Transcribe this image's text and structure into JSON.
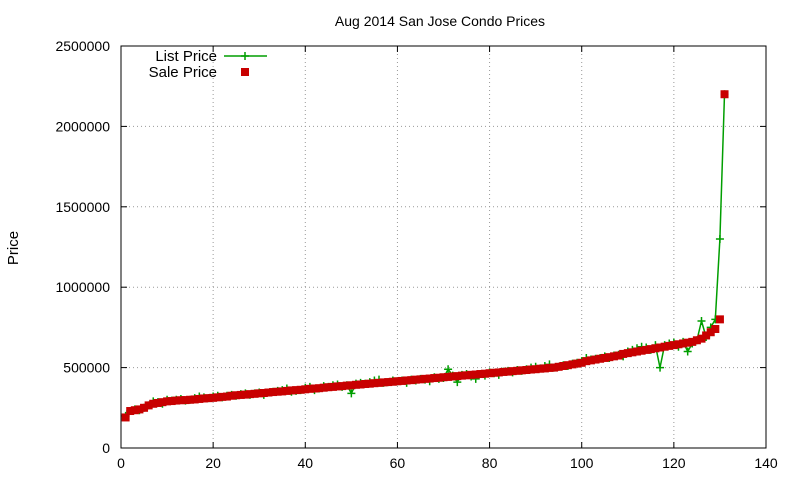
{
  "chart_data": {
    "type": "line",
    "title": "Aug 2014 San Jose Condo Prices",
    "xlabel": "",
    "ylabel": "Price",
    "xlim": [
      0,
      140
    ],
    "ylim": [
      0,
      2500000
    ],
    "xticks": [
      0,
      20,
      40,
      60,
      80,
      100,
      120,
      140
    ],
    "yticks": [
      0,
      500000,
      1000000,
      1500000,
      2000000,
      2500000
    ],
    "grid": true,
    "legend_position": "top-left",
    "series": [
      {
        "name": "List Price",
        "color": "#009e00",
        "marker": "plus",
        "x": [
          1,
          2,
          3,
          4,
          5,
          6,
          7,
          8,
          9,
          10,
          11,
          12,
          13,
          14,
          15,
          16,
          17,
          18,
          19,
          20,
          21,
          22,
          23,
          24,
          25,
          26,
          27,
          28,
          29,
          30,
          31,
          32,
          33,
          34,
          35,
          36,
          37,
          38,
          39,
          40,
          41,
          42,
          43,
          44,
          45,
          46,
          47,
          48,
          49,
          50,
          51,
          52,
          53,
          54,
          55,
          56,
          57,
          58,
          59,
          60,
          61,
          62,
          63,
          64,
          65,
          66,
          67,
          68,
          69,
          70,
          71,
          72,
          73,
          74,
          75,
          76,
          77,
          78,
          79,
          80,
          81,
          82,
          83,
          84,
          85,
          86,
          87,
          88,
          89,
          90,
          91,
          92,
          93,
          94,
          95,
          96,
          97,
          98,
          99,
          100,
          101,
          102,
          103,
          104,
          105,
          106,
          107,
          108,
          109,
          110,
          111,
          112,
          113,
          114,
          115,
          116,
          117,
          118,
          119,
          120,
          121,
          122,
          123,
          124,
          125,
          126,
          127,
          128,
          129,
          130,
          131
        ],
        "values": [
          200000,
          230000,
          240000,
          235000,
          250000,
          265000,
          290000,
          285000,
          275000,
          300000,
          295000,
          300000,
          305000,
          295000,
          300000,
          310000,
          320000,
          315000,
          310000,
          320000,
          325000,
          315000,
          325000,
          330000,
          325000,
          335000,
          340000,
          330000,
          340000,
          345000,
          330000,
          345000,
          350000,
          355000,
          360000,
          370000,
          350000,
          355000,
          360000,
          375000,
          380000,
          360000,
          370000,
          385000,
          380000,
          390000,
          395000,
          380000,
          390000,
          340000,
          400000,
          405000,
          400000,
          410000,
          420000,
          425000,
          405000,
          410000,
          420000,
          415000,
          420000,
          405000,
          425000,
          420000,
          430000,
          425000,
          415000,
          440000,
          430000,
          435000,
          490000,
          450000,
          410000,
          455000,
          460000,
          445000,
          430000,
          460000,
          450000,
          470000,
          465000,
          455000,
          475000,
          480000,
          470000,
          485000,
          480000,
          490000,
          500000,
          505000,
          495000,
          510000,
          520000,
          500000,
          505000,
          515000,
          510000,
          525000,
          530000,
          540000,
          560000,
          550000,
          555000,
          560000,
          570000,
          560000,
          575000,
          580000,
          570000,
          600000,
          610000,
          620000,
          630000,
          625000,
          610000,
          640000,
          500000,
          640000,
          650000,
          655000,
          630000,
          660000,
          600000,
          650000,
          670000,
          790000,
          690000,
          750000,
          800000,
          1300000,
          2200000
        ]
      },
      {
        "name": "Sale Price",
        "color": "#c80000",
        "marker": "square",
        "x": [
          1,
          2,
          3,
          4,
          5,
          6,
          7,
          8,
          9,
          10,
          11,
          12,
          13,
          14,
          15,
          16,
          17,
          18,
          19,
          20,
          21,
          22,
          23,
          24,
          25,
          26,
          27,
          28,
          29,
          30,
          31,
          32,
          33,
          34,
          35,
          36,
          37,
          38,
          39,
          40,
          41,
          42,
          43,
          44,
          45,
          46,
          47,
          48,
          49,
          50,
          51,
          52,
          53,
          54,
          55,
          56,
          57,
          58,
          59,
          60,
          61,
          62,
          63,
          64,
          65,
          66,
          67,
          68,
          69,
          70,
          71,
          72,
          73,
          74,
          75,
          76,
          77,
          78,
          79,
          80,
          81,
          82,
          83,
          84,
          85,
          86,
          87,
          88,
          89,
          90,
          91,
          92,
          93,
          94,
          95,
          96,
          97,
          98,
          99,
          100,
          101,
          102,
          103,
          104,
          105,
          106,
          107,
          108,
          109,
          110,
          111,
          112,
          113,
          114,
          115,
          116,
          117,
          118,
          119,
          120,
          121,
          122,
          123,
          124,
          125,
          126,
          127,
          128,
          129,
          130,
          131
        ],
        "values": [
          190000,
          230000,
          235000,
          240000,
          250000,
          265000,
          275000,
          280000,
          285000,
          290000,
          292000,
          295000,
          297000,
          298000,
          300000,
          302000,
          305000,
          308000,
          310000,
          312000,
          315000,
          318000,
          320000,
          325000,
          328000,
          330000,
          332000,
          335000,
          337000,
          340000,
          342000,
          345000,
          348000,
          350000,
          352000,
          355000,
          358000,
          360000,
          362000,
          365000,
          368000,
          370000,
          372000,
          375000,
          378000,
          380000,
          383000,
          385000,
          388000,
          390000,
          393000,
          395000,
          398000,
          400000,
          403000,
          405000,
          408000,
          410000,
          412000,
          415000,
          417000,
          420000,
          422000,
          425000,
          427000,
          430000,
          432000,
          435000,
          437000,
          440000,
          442000,
          445000,
          447000,
          450000,
          452000,
          455000,
          457000,
          460000,
          462000,
          465000,
          468000,
          470000,
          473000,
          475000,
          478000,
          480000,
          483000,
          485000,
          488000,
          490000,
          493000,
          495000,
          498000,
          500000,
          505000,
          510000,
          515000,
          520000,
          525000,
          530000,
          540000,
          545000,
          550000,
          555000,
          560000,
          565000,
          570000,
          575000,
          585000,
          590000,
          595000,
          600000,
          605000,
          610000,
          615000,
          620000,
          625000,
          630000,
          635000,
          640000,
          645000,
          650000,
          655000,
          660000,
          670000,
          680000,
          700000,
          720000,
          740000,
          800000,
          2200000
        ]
      }
    ]
  }
}
